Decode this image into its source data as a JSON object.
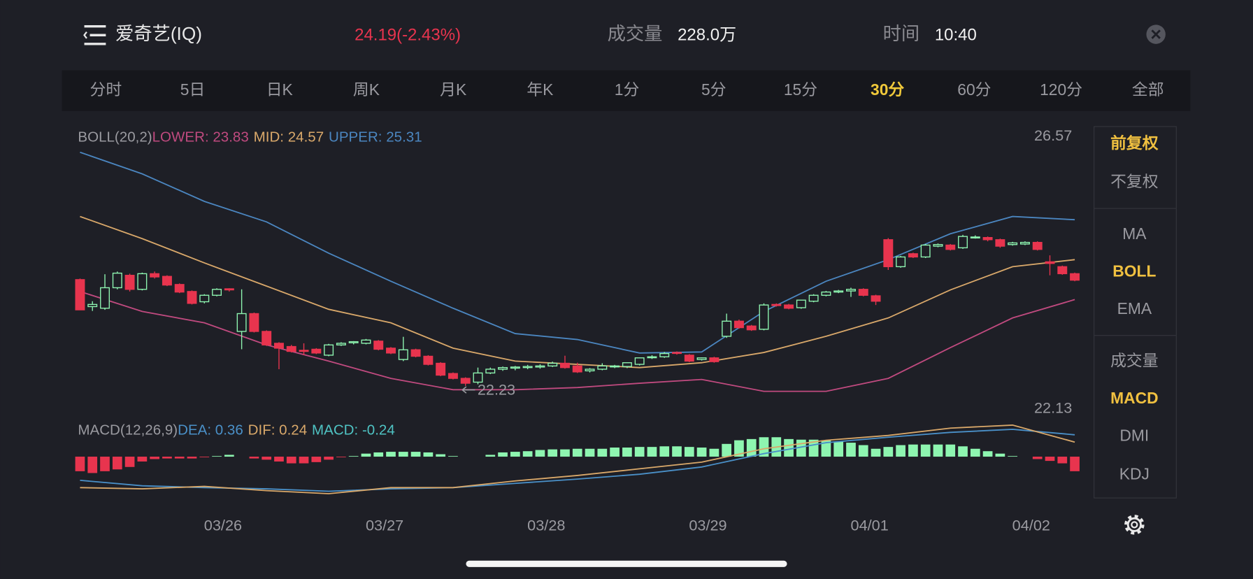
{
  "header": {
    "name": "爱奇艺(IQ)",
    "price": "24.19(-2.43%)",
    "volume_label": "成交量",
    "volume": "228.0万",
    "time_label": "时间",
    "time": "10:40"
  },
  "tabs": {
    "items": [
      "分时",
      "5日",
      "日K",
      "周K",
      "月K",
      "年K",
      "1分",
      "5分",
      "15分",
      "30分",
      "60分",
      "120分",
      "全部"
    ],
    "active": 9
  },
  "side_panel": {
    "groups": [
      [
        {
          "label": "前复权",
          "active": true
        },
        {
          "label": "不复权",
          "active": false
        }
      ],
      [
        {
          "label": "MA",
          "active": false
        },
        {
          "label": "BOLL",
          "active": true
        },
        {
          "label": "EMA",
          "active": false
        }
      ],
      [
        {
          "label": "成交量",
          "active": false
        },
        {
          "label": "MACD",
          "active": true
        },
        {
          "label": "DMI",
          "active": false
        },
        {
          "label": "KDJ",
          "active": false
        }
      ]
    ]
  },
  "chart_data": [
    {
      "type": "candlestick",
      "title": "BOLL(20,2)",
      "up_color": "#8ef5b0",
      "down_color": "#e8344e",
      "xlim": [
        -0.3,
        80.3
      ],
      "ylim": [
        22.13,
        26.57
      ],
      "xticks": [
        {
          "value": 11.5,
          "label": "03/26"
        },
        {
          "value": 24.5,
          "label": "03/27"
        },
        {
          "value": 37.5,
          "label": "03/28"
        },
        {
          "value": 50.5,
          "label": "03/29"
        },
        {
          "value": 63.5,
          "label": "04/01"
        },
        {
          "value": 76.5,
          "label": "04/02"
        }
      ],
      "open": [
        24.2,
        23.7,
        23.67,
        24.05,
        24.28,
        24.02,
        24.31,
        24.26,
        24.11,
        23.98,
        23.79,
        23.91,
        24.03,
        23.24,
        23.57,
        23.24,
        23.02,
        22.96,
        22.89,
        22.91,
        22.8,
        22.99,
        23.03,
        23.02,
        23.06,
        22.93,
        22.72,
        22.9,
        22.78,
        22.65,
        22.46,
        22.37,
        22.3,
        22.47,
        22.54,
        22.56,
        22.57,
        22.58,
        22.6,
        22.65,
        22.6,
        22.51,
        22.54,
        22.59,
        22.59,
        22.63,
        22.76,
        22.77,
        22.85,
        22.8,
        22.72,
        22.75,
        23.15,
        23.43,
        23.34,
        23.28,
        23.74,
        23.73,
        23.68,
        23.8,
        23.91,
        23.97,
        23.99,
        24.02,
        23.9,
        24.94,
        24.44,
        24.68,
        24.62,
        24.82,
        24.84,
        24.79,
        24.98,
        24.98,
        24.94,
        24.85,
        24.86,
        24.89,
        24.53,
        24.44,
        24.31
      ],
      "high": [
        24.22,
        23.8,
        24.3,
        24.35,
        24.31,
        24.33,
        24.35,
        24.28,
        24.13,
        24.0,
        23.93,
        24.04,
        24.04,
        24.02,
        23.59,
        23.26,
        23.04,
        22.99,
        23.02,
        22.93,
        23.01,
        23.04,
        23.06,
        23.1,
        23.08,
        22.95,
        23.14,
        22.92,
        22.8,
        22.67,
        22.48,
        22.39,
        22.57,
        22.57,
        22.59,
        22.6,
        22.62,
        22.63,
        22.68,
        22.79,
        22.66,
        22.56,
        22.65,
        22.62,
        22.66,
        22.75,
        22.8,
        22.86,
        22.87,
        22.82,
        22.76,
        22.77,
        23.57,
        23.46,
        23.36,
        23.76,
        23.76,
        23.75,
        23.82,
        23.93,
        23.99,
        24.01,
        24.05,
        24.04,
        23.92,
        24.97,
        24.64,
        24.7,
        24.86,
        24.87,
        24.86,
        25.03,
        25.02,
        25.0,
        24.96,
        24.9,
        24.91,
        24.91,
        24.65,
        24.46,
        24.33
      ],
      "low": [
        23.64,
        23.62,
        23.64,
        24.02,
        23.98,
        24.0,
        24.22,
        24.08,
        23.95,
        23.74,
        23.76,
        23.89,
        23.98,
        22.91,
        23.22,
        22.97,
        22.54,
        22.85,
        22.8,
        22.82,
        22.78,
        22.97,
        23.0,
        23.0,
        22.89,
        22.82,
        22.69,
        22.76,
        22.61,
        22.41,
        22.35,
        22.23,
        22.26,
        22.45,
        22.51,
        22.52,
        22.54,
        22.55,
        22.58,
        22.55,
        22.47,
        22.48,
        22.52,
        22.56,
        22.56,
        22.61,
        22.73,
        22.75,
        22.81,
        22.67,
        22.7,
        22.66,
        23.12,
        23.29,
        23.25,
        23.26,
        23.7,
        23.65,
        23.66,
        23.78,
        23.89,
        23.95,
        23.88,
        23.89,
        23.73,
        24.38,
        24.42,
        24.6,
        24.6,
        24.8,
        24.74,
        24.77,
        24.96,
        24.91,
        24.79,
        24.83,
        24.84,
        24.74,
        24.28,
        24.29,
        24.17
      ],
      "close": [
        23.64,
        23.74,
        24.05,
        24.32,
        24.02,
        24.31,
        24.25,
        24.1,
        23.97,
        23.76,
        23.91,
        24.02,
        24.01,
        23.57,
        23.24,
        22.99,
        22.93,
        22.87,
        22.87,
        22.84,
        22.99,
        23.02,
        23.05,
        23.08,
        22.91,
        22.84,
        22.9,
        22.78,
        22.63,
        22.43,
        22.37,
        22.28,
        22.47,
        22.54,
        22.57,
        22.58,
        22.59,
        22.6,
        22.65,
        22.57,
        22.49,
        22.54,
        22.6,
        22.6,
        22.66,
        22.75,
        22.77,
        22.83,
        22.84,
        22.69,
        22.75,
        22.68,
        23.43,
        23.31,
        23.27,
        23.73,
        23.72,
        23.67,
        23.82,
        23.91,
        23.97,
        23.99,
        24.02,
        23.91,
        23.8,
        24.44,
        24.62,
        24.62,
        24.84,
        24.85,
        24.76,
        25.0,
        24.99,
        24.94,
        24.82,
        24.88,
        24.89,
        24.76,
        24.5,
        24.31,
        24.19
      ],
      "series": [
        {
          "name": "LOWER: 23.83",
          "color": "#c04a7f",
          "x": [
            0,
            5,
            10,
            15,
            20,
            25,
            30,
            35,
            40,
            45,
            50,
            55,
            60,
            65,
            70,
            75,
            80
          ],
          "values": [
            23.98,
            23.61,
            23.4,
            22.99,
            22.69,
            22.37,
            22.16,
            22.16,
            22.2,
            22.28,
            22.35,
            22.13,
            22.13,
            22.37,
            22.94,
            23.49,
            23.83
          ]
        },
        {
          "name": "MID: 24.57",
          "color": "#d9a86a",
          "x": [
            0,
            5,
            10,
            15,
            20,
            25,
            30,
            35,
            40,
            45,
            50,
            55,
            60,
            65,
            70,
            75,
            80
          ],
          "values": [
            25.37,
            24.96,
            24.51,
            24.08,
            23.65,
            23.4,
            22.93,
            22.69,
            22.63,
            22.57,
            22.66,
            22.85,
            23.15,
            23.49,
            24.01,
            24.44,
            24.57
          ]
        },
        {
          "name": "UPPER: 25.31",
          "color": "#4b86c0",
          "x": [
            0,
            5,
            10,
            15,
            20,
            25,
            30,
            35,
            40,
            45,
            50,
            55,
            60,
            65,
            70,
            75,
            80
          ],
          "values": [
            26.56,
            26.16,
            25.65,
            25.27,
            24.69,
            24.17,
            23.67,
            23.2,
            23.09,
            22.84,
            22.86,
            23.61,
            24.17,
            24.57,
            25.05,
            25.37,
            25.31
          ]
        }
      ],
      "annotation": {
        "x": 31,
        "value": 22.23,
        "label": "22.23"
      }
    },
    {
      "type": "macd",
      "title": "MACD(12,26,9)",
      "up_color": "#8ef5b0",
      "down_color": "#e8344e",
      "xlim": [
        -0.3,
        80.3
      ],
      "ylim": [
        -0.7,
        0.55
      ],
      "series": [
        {
          "name": "DEA: 0.36",
          "color": "#4a90c8",
          "x": [
            0,
            5,
            10,
            15,
            20,
            25,
            30,
            35,
            40,
            45,
            50,
            55,
            60,
            65,
            70,
            75,
            80
          ],
          "values": [
            -0.39,
            -0.48,
            -0.51,
            -0.53,
            -0.57,
            -0.53,
            -0.51,
            -0.44,
            -0.37,
            -0.29,
            -0.17,
            0.05,
            0.23,
            0.32,
            0.4,
            0.45,
            0.36
          ]
        },
        {
          "name": "DIF: 0.24",
          "color": "#d9a86a",
          "x": [
            0,
            5,
            10,
            15,
            20,
            25,
            30,
            35,
            40,
            45,
            50,
            55,
            60,
            65,
            70,
            75,
            80
          ],
          "values": [
            -0.51,
            -0.53,
            -0.49,
            -0.56,
            -0.61,
            -0.51,
            -0.51,
            -0.4,
            -0.31,
            -0.2,
            -0.09,
            0.13,
            0.27,
            0.35,
            0.47,
            0.52,
            0.24
          ]
        },
        {
          "name": "MACD: -0.24",
          "color": "#4fc3c3",
          "values": [
            -0.24,
            -0.27,
            -0.24,
            -0.21,
            -0.17,
            -0.08,
            -0.04,
            -0.03,
            -0.03,
            -0.03,
            -0.01,
            0.01,
            0.03,
            0,
            -0.03,
            -0.05,
            -0.08,
            -0.11,
            -0.11,
            -0.09,
            -0.05,
            -0.01,
            0.01,
            0.05,
            0.07,
            0.08,
            0.08,
            0.08,
            0.07,
            0.04,
            0.01,
            0,
            0,
            0.03,
            0.07,
            0.08,
            0.09,
            0.11,
            0.12,
            0.12,
            0.13,
            0.13,
            0.13,
            0.15,
            0.15,
            0.16,
            0.16,
            0.17,
            0.17,
            0.16,
            0.15,
            0.13,
            0.21,
            0.27,
            0.29,
            0.32,
            0.32,
            0.29,
            0.28,
            0.28,
            0.27,
            0.25,
            0.23,
            0.19,
            0.13,
            0.16,
            0.19,
            0.2,
            0.2,
            0.2,
            0.2,
            0.17,
            0.13,
            0.09,
            0.05,
            0.01,
            0,
            -0.04,
            -0.07,
            -0.11,
            -0.24
          ]
        }
      ]
    }
  ]
}
